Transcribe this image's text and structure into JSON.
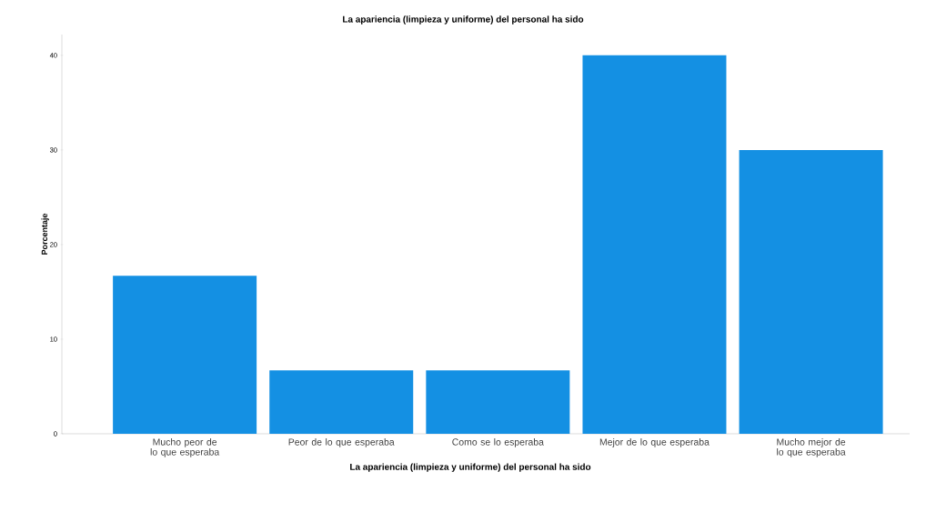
{
  "chart_data": {
    "type": "bar",
    "title": "La apariencia (limpieza y uniforme) del personal ha sido",
    "xlabel": "La apariencia (limpieza y uniforme) del personal ha sido",
    "ylabel": "Porcentaje",
    "categories": [
      "Mucho peor de lo que esperaba",
      "Peor de lo que esperaba",
      "Como se lo esperaba",
      "Mejor de lo que esperaba",
      "Mucho mejor de lo que esperaba"
    ],
    "values": [
      16.7,
      6.7,
      6.7,
      40,
      30
    ],
    "color": "#1490e3",
    "ylim": [
      0,
      42.2
    ],
    "yticks": [
      0,
      10,
      20,
      30,
      40
    ],
    "grid": false
  }
}
